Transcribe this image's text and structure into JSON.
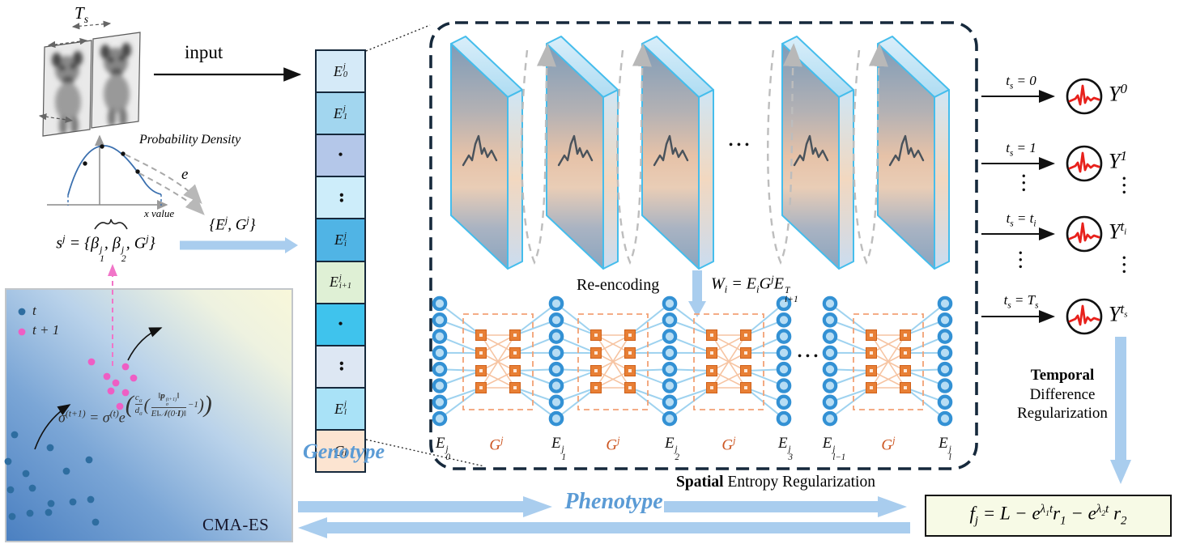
{
  "colors": {
    "accent_blue_arrow": "#a9cdee",
    "accent_blue_text": "#5b9bd5",
    "orange": "#cc5520",
    "node_blue": "#3391d4",
    "square_orange": "#e87f35",
    "spike_red": "#e8211c",
    "dashed_box_border": "#16293c",
    "pink": "#ee5ec4",
    "scatter_blue": "#2e6da0"
  },
  "input_stack": {
    "ts_html": "T<sub>s</sub>",
    "input_label": "input"
  },
  "density_plot": {
    "title": "Probability Density",
    "e_label": "e",
    "x_axis_label": "x value"
  },
  "sampling": {
    "s_equation_html": "s<sup>j</sup> = {β<span class='st'><span>j</span><span>1</span></span>, β<span class='st'><span>j</span><span>2</span></span>, G<sup>j</sup>}",
    "eg_set_html": "{E<sup>j</sup>, G<sup>j</sup>}"
  },
  "cmaes": {
    "legend_t_html": "t",
    "legend_t1_html": "t + 1",
    "sigma_equation_html": "σ<sup>(t+1)</sup> = σ<sup>(t)</sup>e<span class='exp'><span class='bp1'>(</span><span class='fr'><span>c<sub>σ</sub></span><span>d<sub>σ</sub></span></span><span class='bp2'>(</span><span class='fr'><span>‖<b>p</b><span class='st'><span>(t+1)</span><span>σ</span></span>‖</span><span>E‖𝒩(0·<b>I</b>)‖</span></span>−1<span class='bp2'>)</span><span class='bp1'>)</span></span>",
    "box_label": "CMA-ES"
  },
  "genotype": {
    "label": "Genotype",
    "cells": [
      {
        "label_html": "E<span class='st'><span>j</span><span>0</span></span>",
        "color": "#d5eaf8"
      },
      {
        "label_html": "E<span class='st'><span>j</span><span>1</span></span>",
        "color": "#a2d6ef"
      },
      {
        "label_html": "<span class='dotcell'>•</span>",
        "color": "#b4c7e9"
      },
      {
        "label_html": "<span class='vd2'>••</span>",
        "color": "#cdedfa"
      },
      {
        "label_html": "E<span class='st'><span>j</span><span>i</span></span>",
        "color": "#50b4e5"
      },
      {
        "label_html": "E<span class='st'><span>j</span><span>i+1</span></span>",
        "color": "#dff0d5"
      },
      {
        "label_html": "<span class='dotcell'>•</span>",
        "color": "#3fc3ed"
      },
      {
        "label_html": "<span class='vd2'>••</span>",
        "color": "#dde7f3"
      },
      {
        "label_html": "E<span class='st'><span>j</span><span>l</span></span>",
        "color": "#a9e2f7"
      },
      {
        "label_html": "G<sup>j</sup>",
        "color": "#fce4d1"
      }
    ]
  },
  "encoder_panel": {
    "reencoding_label": "Re-encoding",
    "w_equation_html": "W<sub>i</sub> = E<sub>i</sub>G<sup>j</sup>E<span class='st'><span>T</span><span>i+1</span></span>",
    "slab_dots": "•••",
    "nn_dots": "•••",
    "layer_labels": [
      {
        "html": "E<span class='st'><span>j</span><span>0</span></span>"
      },
      {
        "html": "G<sup>j</sup>"
      },
      {
        "html": "E<span class='st'><span>j</span><span>1</span></span>"
      },
      {
        "html": "G<sup>j</sup>"
      },
      {
        "html": "E<span class='st'><span>j</span><span>2</span></span>"
      },
      {
        "html": "G<sup>j</sup>"
      },
      {
        "html": "E<span class='st'><span>j</span><span>3</span></span>"
      },
      {
        "html": "E<span class='st'><span>j</span><span>l−1</span></span>"
      },
      {
        "html": "G<sup>j</sup>"
      },
      {
        "html": "E<span class='st'><span>j</span><span>l</span></span>"
      }
    ]
  },
  "outputs": {
    "rows": [
      {
        "ts_html": "t<sub>s</sub> = 0",
        "y_html": "Y<sup>0</sup>"
      },
      {
        "ts_html": "t<sub>s</sub> = 1",
        "y_html": "Y<sup>1</sup>"
      },
      {
        "ts_html": "t<sub>s</sub> = t<sub>i</sub>",
        "y_html": "Y<sup>t<sub>i</sub></sup>"
      },
      {
        "ts_html": "t<sub>s</sub> = T<sub>s</sub>",
        "y_html": "Y<sup>t<sub>s</sub></sup>"
      }
    ],
    "dots": "•••"
  },
  "regularization": {
    "temporal_line1": "Temporal",
    "temporal_line2": "Difference",
    "temporal_line3": "Regularization",
    "spatial_html": "<b>Spatial</b> Entropy Regularization"
  },
  "flow": {
    "phenotype_label": "Phenotype",
    "fitness_equation_html": "f<sub>j</sub> = L − e<sup>λ<sub>1</sub>t</sup>r<sub>1</sub> − e<sup>λ<sub>2</sub>t</sup> r<sub>2</sub>"
  }
}
